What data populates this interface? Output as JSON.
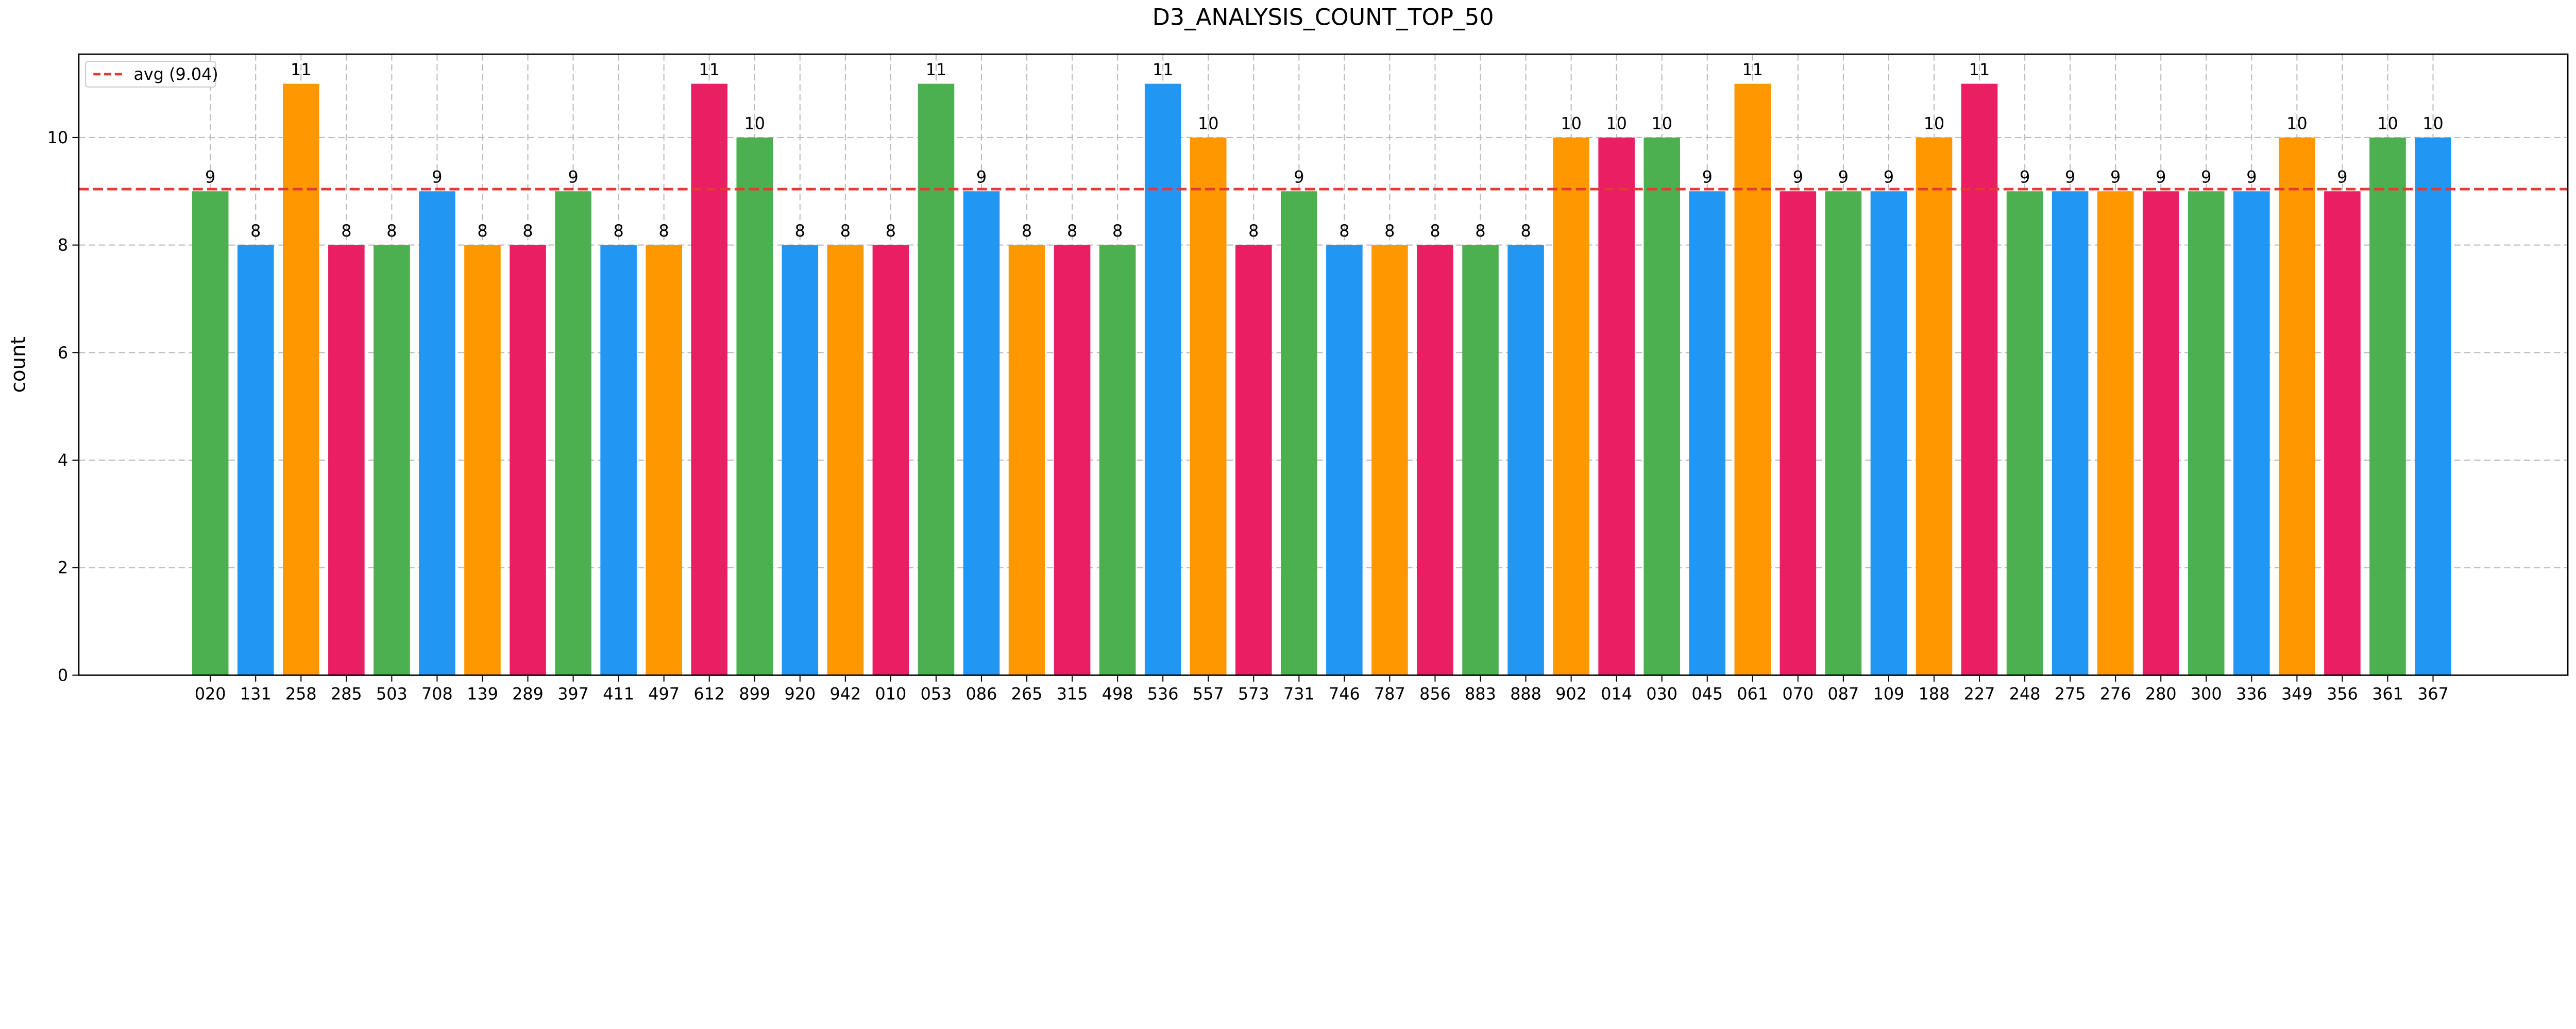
{
  "chart_data": {
    "type": "bar",
    "title": "D3_ANALYSIS_COUNT_TOP_50",
    "xlabel": "",
    "ylabel": "count",
    "ylim": [
      0,
      11.55
    ],
    "yticks": [
      0,
      2,
      4,
      6,
      8,
      10
    ],
    "grid": true,
    "legend": {
      "placement": "top-left",
      "entries": [
        "avg (9.04)"
      ]
    },
    "average": 9.04,
    "average_color": "#E53935",
    "bar_colors": [
      "#4CAF50",
      "#2196F3",
      "#FF9800",
      "#E91E63"
    ],
    "categories": [
      "020",
      "131",
      "258",
      "285",
      "503",
      "708",
      "139",
      "289",
      "397",
      "411",
      "497",
      "612",
      "899",
      "920",
      "942",
      "010",
      "053",
      "086",
      "265",
      "315",
      "498",
      "536",
      "557",
      "573",
      "731",
      "746",
      "787",
      "856",
      "883",
      "888",
      "902",
      "014",
      "030",
      "045",
      "061",
      "070",
      "087",
      "109",
      "188",
      "227",
      "248",
      "275",
      "276",
      "280",
      "300",
      "336",
      "349",
      "356",
      "361",
      "367"
    ],
    "values": [
      9,
      8,
      11,
      8,
      8,
      9,
      8,
      8,
      9,
      8,
      8,
      11,
      10,
      8,
      8,
      8,
      11,
      9,
      8,
      8,
      8,
      11,
      10,
      8,
      9,
      8,
      8,
      8,
      8,
      8,
      10,
      10,
      10,
      9,
      11,
      9,
      9,
      9,
      10,
      11,
      9,
      9,
      9,
      9,
      9,
      9,
      10,
      9,
      10,
      10
    ]
  }
}
